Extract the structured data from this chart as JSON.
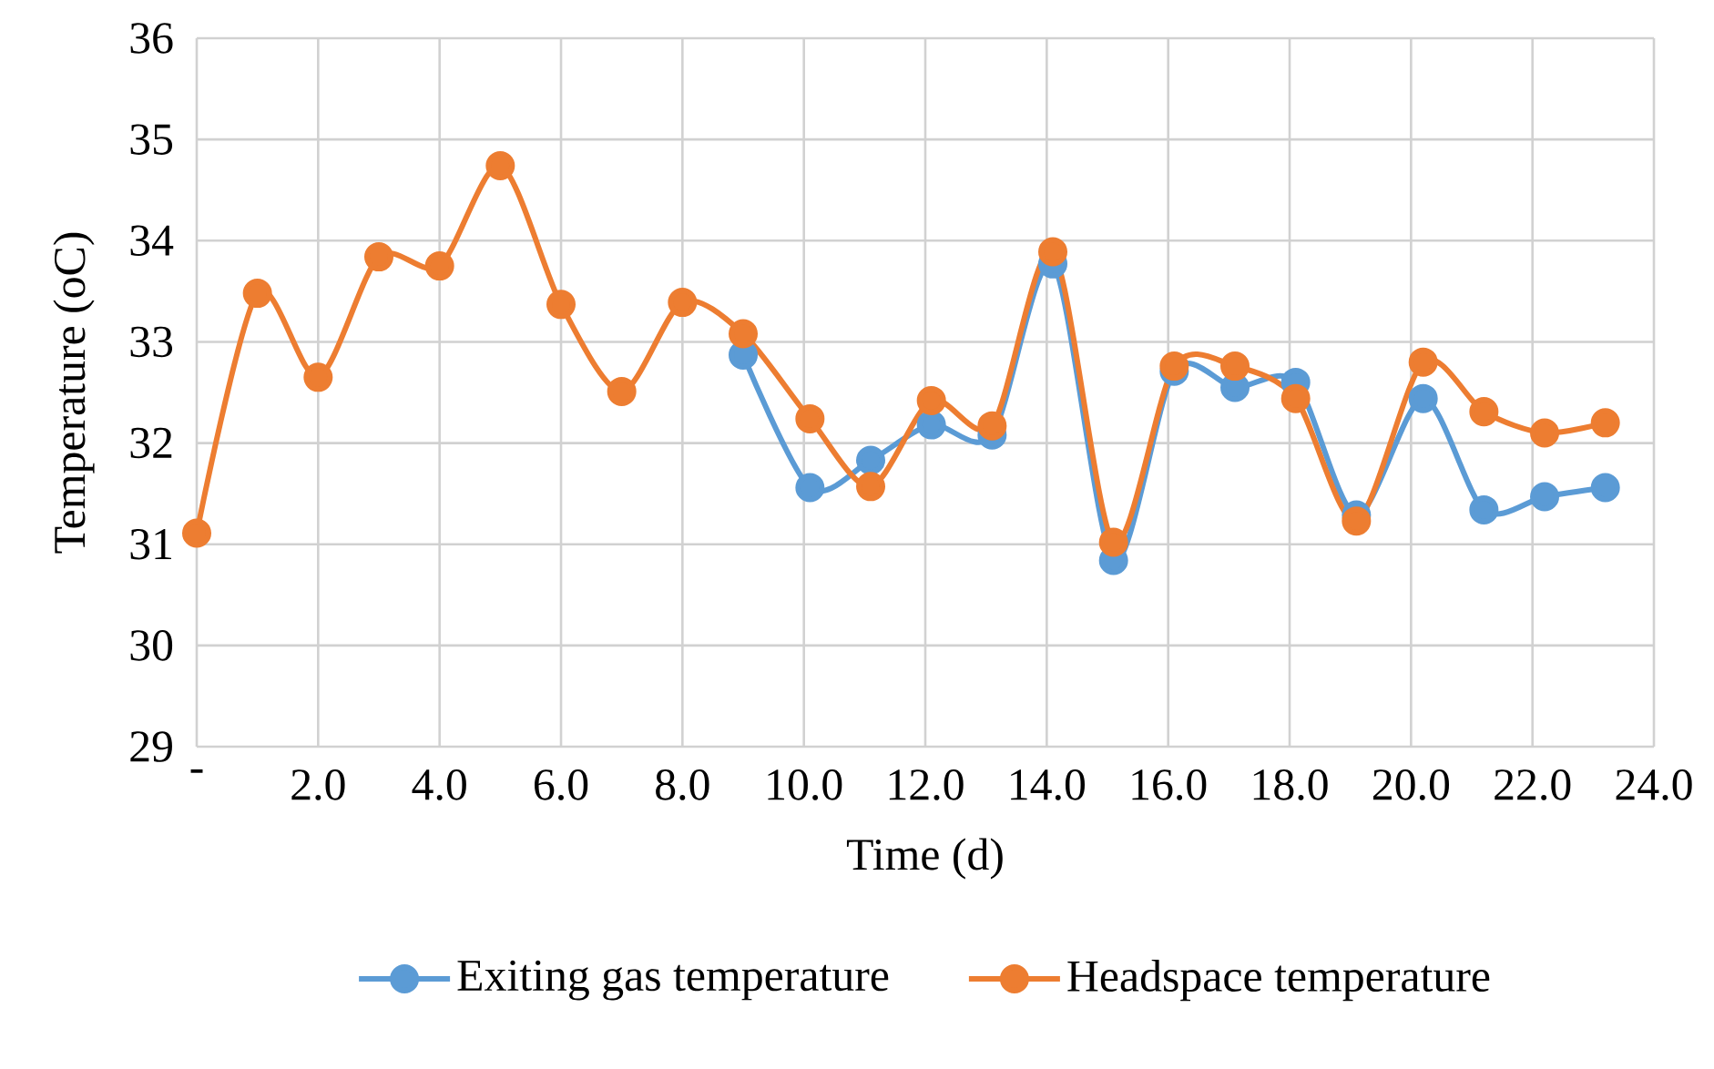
{
  "chart_data": {
    "type": "line",
    "xlabel": "Time (d)",
    "ylabel": "Temperature (oC)",
    "xlim": [
      0,
      24
    ],
    "ylim": [
      29,
      36
    ],
    "xticks": [
      {
        "value": 0,
        "label": "-"
      },
      {
        "value": 2,
        "label": "2.0"
      },
      {
        "value": 4,
        "label": "4.0"
      },
      {
        "value": 6,
        "label": "6.0"
      },
      {
        "value": 8,
        "label": "8.0"
      },
      {
        "value": 10,
        "label": "10.0"
      },
      {
        "value": 12,
        "label": "12.0"
      },
      {
        "value": 14,
        "label": "14.0"
      },
      {
        "value": 16,
        "label": "16.0"
      },
      {
        "value": 18,
        "label": "18.0"
      },
      {
        "value": 20,
        "label": "20.0"
      },
      {
        "value": 22,
        "label": "22.0"
      },
      {
        "value": 24,
        "label": "24.0"
      }
    ],
    "yticks": [
      29,
      30,
      31,
      32,
      33,
      34,
      35,
      36
    ],
    "grid": true,
    "legend": "bottom",
    "marker": "circle",
    "line_style": "solid",
    "series": [
      {
        "name": "Exiting gas temperature",
        "color": "#5b9bd5",
        "x": [
          9.0,
          10.1,
          11.1,
          12.1,
          13.1,
          14.1,
          15.1,
          16.1,
          17.1,
          18.1,
          19.1,
          20.2,
          21.2,
          22.2,
          23.2
        ],
        "values": [
          32.87,
          31.56,
          31.83,
          32.18,
          32.08,
          33.77,
          30.84,
          32.71,
          32.55,
          32.6,
          31.29,
          32.44,
          31.34,
          31.47,
          31.56
        ]
      },
      {
        "name": "Headspace temperature",
        "color": "#ed7d31",
        "x": [
          0,
          1.0,
          2.0,
          3.0,
          4.0,
          5.0,
          6.0,
          7.0,
          8.0,
          9.0,
          10.1,
          11.1,
          12.1,
          13.1,
          14.1,
          15.1,
          16.1,
          17.1,
          18.1,
          19.1,
          20.2,
          21.2,
          22.2,
          23.2
        ],
        "values": [
          31.11,
          33.48,
          32.65,
          33.84,
          33.75,
          34.74,
          33.37,
          32.51,
          33.39,
          33.08,
          32.24,
          31.57,
          32.42,
          32.17,
          33.89,
          31.02,
          32.76,
          32.76,
          32.44,
          31.23,
          32.8,
          32.31,
          32.1,
          32.2
        ]
      }
    ]
  }
}
